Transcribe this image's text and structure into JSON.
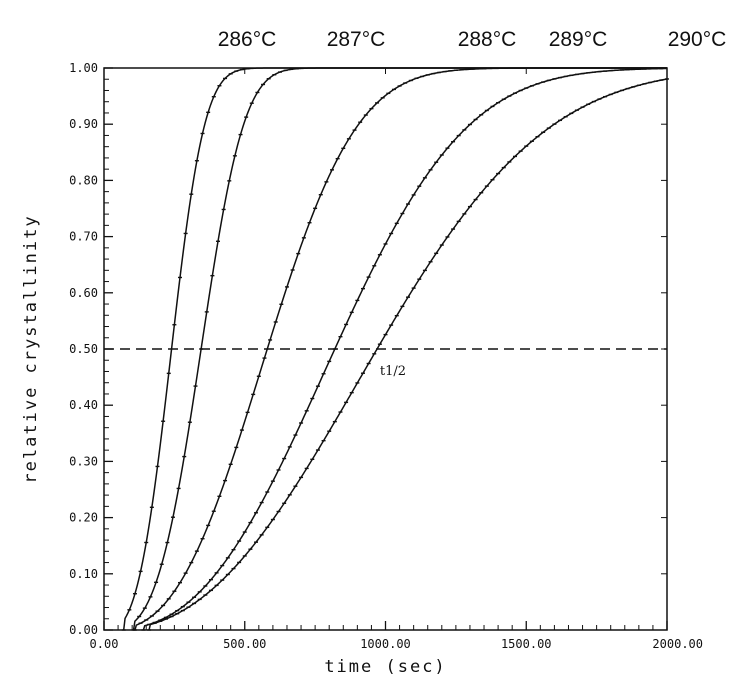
{
  "chart_data": {
    "type": "line",
    "title": "",
    "xlabel": "time (sec)",
    "ylabel": "relative crystallinity",
    "xlim": [
      0,
      2000
    ],
    "ylim": [
      0,
      1
    ],
    "x_ticks": [
      "0.00",
      "500.00",
      "1000.00",
      "1500.00",
      "2000.00"
    ],
    "y_ticks": [
      "0.00",
      "0.10",
      "0.20",
      "0.30",
      "0.40",
      "0.50",
      "0.60",
      "0.70",
      "0.80",
      "0.90",
      "1.00"
    ],
    "grid": false,
    "reference_line": {
      "y": 0.5,
      "style": "dashed",
      "label": "t1/2"
    },
    "series": [
      {
        "name": "286°C",
        "t_half": 240,
        "n": 3.0,
        "x_range": [
          70,
          2000
        ]
      },
      {
        "name": "287°C",
        "t_half": 345,
        "n": 3.3,
        "x_range": [
          105,
          2000
        ]
      },
      {
        "name": "288°C",
        "t_half": 580,
        "n": 2.7,
        "x_range": [
          110,
          2000
        ]
      },
      {
        "name": "289°C",
        "t_half": 820,
        "n": 2.6,
        "x_range": [
          140,
          2000
        ]
      },
      {
        "name": "290°C",
        "t_half": 970,
        "n": 2.4,
        "x_range": [
          160,
          2000
        ]
      }
    ]
  }
}
